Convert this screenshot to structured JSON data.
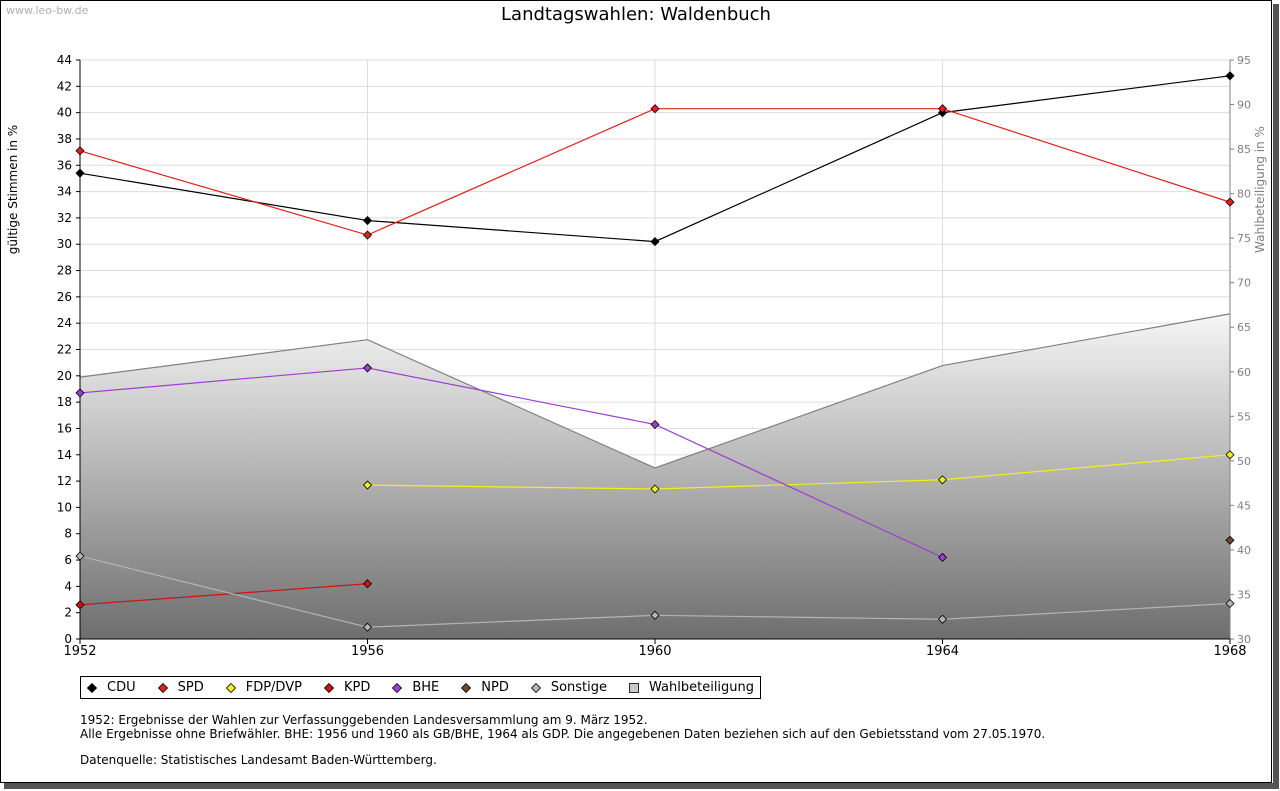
{
  "watermark": "www.leo-bw.de",
  "chart_data": {
    "type": "line",
    "title": "Landtagswahlen: Waldenbuch",
    "x": [
      1952,
      1956,
      1960,
      1964,
      1968
    ],
    "ylabel": "gültige Stimmen in %",
    "ylabel_right": "Wahlbeteiligung in %",
    "ylim": [
      0,
      44
    ],
    "ylim_right": [
      30,
      95
    ],
    "yticks": [
      0,
      2,
      4,
      6,
      8,
      10,
      12,
      14,
      16,
      18,
      20,
      22,
      24,
      26,
      28,
      30,
      32,
      34,
      36,
      38,
      40,
      42,
      44
    ],
    "yticks_right": [
      30,
      35,
      40,
      45,
      50,
      55,
      60,
      65,
      70,
      75,
      80,
      85,
      90,
      95
    ],
    "grid": true,
    "series": [
      {
        "name": "CDU",
        "color": "#000000",
        "values": [
          35.4,
          31.8,
          30.2,
          40.0,
          42.8
        ]
      },
      {
        "name": "SPD",
        "color": "#e0201c",
        "values": [
          37.1,
          30.7,
          40.3,
          40.3,
          33.2
        ]
      },
      {
        "name": "FDP/DVP",
        "color": "#f2ef1b",
        "values": [
          null,
          11.7,
          11.4,
          12.1,
          14.0
        ]
      },
      {
        "name": "KPD",
        "color": "#c81414",
        "values": [
          2.6,
          4.2,
          null,
          null,
          null
        ]
      },
      {
        "name": "BHE",
        "color": "#9b3fcf",
        "values": [
          18.7,
          20.6,
          16.3,
          6.2,
          null
        ]
      },
      {
        "name": "NPD",
        "color": "#6b4a35",
        "values": [
          null,
          null,
          null,
          null,
          7.5
        ]
      },
      {
        "name": "Sonstige",
        "color": "#b4b4b4",
        "values": [
          6.3,
          0.9,
          1.8,
          1.5,
          2.7
        ]
      }
    ],
    "area": {
      "name": "Wahlbeteiligung",
      "axis": "right",
      "values": [
        59.4,
        63.6,
        49.2,
        60.7,
        66.5
      ]
    }
  },
  "legend": [
    {
      "label": "CDU",
      "color": "#000000",
      "shape": "diamond"
    },
    {
      "label": "SPD",
      "color": "#e0201c",
      "shape": "diamond"
    },
    {
      "label": "FDP/DVP",
      "color": "#f2ef1b",
      "shape": "diamond"
    },
    {
      "label": "KPD",
      "color": "#c81414",
      "shape": "diamond"
    },
    {
      "label": "BHE",
      "color": "#9b3fcf",
      "shape": "diamond"
    },
    {
      "label": "NPD",
      "color": "#6b4a35",
      "shape": "diamond"
    },
    {
      "label": "Sonstige",
      "color": "#b4b4b4",
      "shape": "diamond"
    },
    {
      "label": "Wahlbeteiligung",
      "color": "#c8c8c8",
      "shape": "square"
    }
  ],
  "notes": {
    "line1": "1952: Ergebnisse der Wahlen zur Verfassunggebenden Landesversammlung am 9. März 1952.",
    "line2": "Alle Ergebnisse ohne Briefwähler. BHE: 1956 und 1960 als GB/BHE, 1964 als GDP. Die angegebenen Daten beziehen sich auf den Gebietsstand vom 27.05.1970.",
    "source": "Datenquelle: Statistisches Landesamt Baden-Württemberg."
  }
}
